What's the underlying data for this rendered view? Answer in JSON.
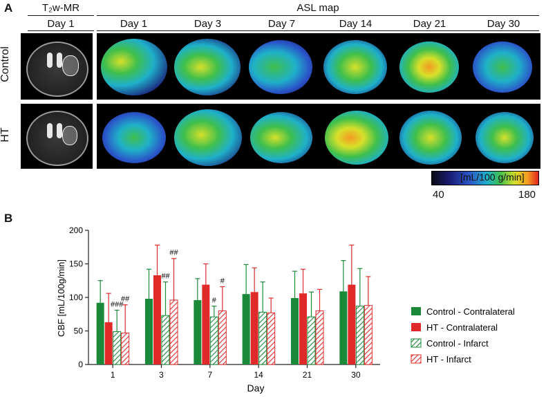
{
  "panel_a": {
    "letter": "A",
    "t2w_label": "T₂w-MR",
    "asl_label": "ASL map",
    "t2w_day": "Day 1",
    "asl_days": [
      "Day 1",
      "Day 3",
      "Day 7",
      "Day 14",
      "Day 21",
      "Day 30"
    ],
    "rows": [
      "Control",
      "HT"
    ],
    "colorbar": {
      "title": "[mL/100 g/min]",
      "min": "40",
      "max": "180"
    }
  },
  "panel_b": {
    "letter": "B"
  },
  "chart_data": {
    "type": "bar",
    "xlabel": "Day",
    "ylabel": "CBF [mL/100g/min]",
    "ylim": [
      0,
      200
    ],
    "yticks": [
      0,
      50,
      100,
      150,
      200
    ],
    "categories": [
      "1",
      "3",
      "7",
      "14",
      "21",
      "30"
    ],
    "series": [
      {
        "name": "Control - Contralateral",
        "color": "#1a8a3a",
        "pattern": "solid",
        "values": [
          92,
          98,
          96,
          105,
          99,
          109
        ],
        "errors": [
          33,
          44,
          32,
          44,
          40,
          46
        ]
      },
      {
        "name": "HT - Contralateral",
        "color": "#e02a2a",
        "pattern": "solid",
        "values": [
          63,
          133,
          119,
          108,
          106,
          119
        ],
        "errors": [
          43,
          45,
          31,
          36,
          36,
          59
        ]
      },
      {
        "name": "Control - Infarct",
        "color": "#1a8a3a",
        "pattern": "hatch",
        "values": [
          49,
          73,
          71,
          78,
          71,
          87
        ],
        "errors": [
          32,
          50,
          16,
          45,
          37,
          56
        ]
      },
      {
        "name": "HT - Infarct",
        "color": "#e02a2a",
        "pattern": "hatch",
        "values": [
          47,
          96,
          80,
          77,
          80,
          88
        ],
        "errors": [
          42,
          62,
          36,
          22,
          32,
          43
        ]
      }
    ],
    "annotations": [
      {
        "category": "1",
        "series": 2,
        "text": "###"
      },
      {
        "category": "1",
        "series": 3,
        "text": "##"
      },
      {
        "category": "3",
        "series": 2,
        "text": "##"
      },
      {
        "category": "3",
        "series": 3,
        "text": "##"
      },
      {
        "category": "7",
        "series": 2,
        "text": "#"
      },
      {
        "category": "7",
        "series": 3,
        "text": "#"
      }
    ],
    "legend_position": "right"
  },
  "colors": {
    "green": "#1a8a3a",
    "red": "#e02a2a"
  }
}
